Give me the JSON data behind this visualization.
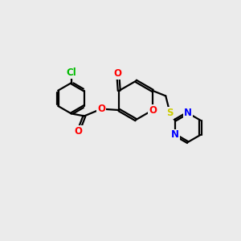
{
  "bg_color": "#ebebeb",
  "bond_color": "#000000",
  "bond_width": 1.6,
  "atom_colors": {
    "O": "#ff0000",
    "N": "#0000ff",
    "S": "#cccc00",
    "Cl": "#00bb00",
    "C": "#000000"
  },
  "font_size": 8.5
}
